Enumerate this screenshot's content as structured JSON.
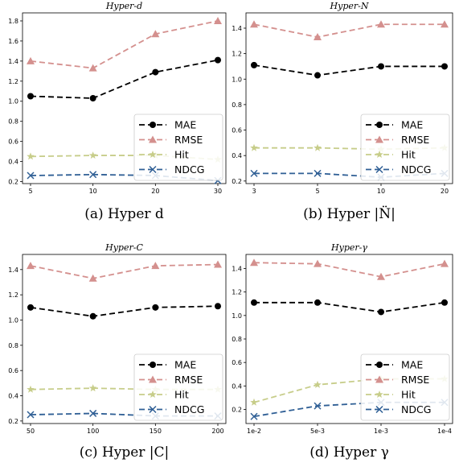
{
  "chart_data": [
    {
      "type": "line",
      "title": "Hyper-d",
      "caption": "(a) Hyper d",
      "categories": [
        "5",
        "10",
        "20",
        "30"
      ],
      "ylim": [
        0.18,
        1.88
      ],
      "yticks": [
        0.2,
        0.4,
        0.6,
        0.8,
        1.0,
        1.2,
        1.4,
        1.6,
        1.8
      ],
      "legend": "bottom-right",
      "grid": false,
      "series": [
        {
          "name": "MAE",
          "values": [
            1.05,
            1.03,
            1.29,
            1.41
          ]
        },
        {
          "name": "RMSE",
          "values": [
            1.4,
            1.33,
            1.67,
            1.8
          ]
        },
        {
          "name": "Hit",
          "values": [
            0.45,
            0.46,
            0.46,
            0.42
          ]
        },
        {
          "name": "NDCG",
          "values": [
            0.26,
            0.27,
            0.26,
            0.21
          ]
        }
      ]
    },
    {
      "type": "line",
      "title": "Hyper-N",
      "caption": "(b) Hyper |N̈|",
      "categories": [
        "3",
        "5",
        "10",
        "20"
      ],
      "ylim": [
        0.18,
        1.52
      ],
      "yticks": [
        0.2,
        0.4,
        0.6,
        0.8,
        1.0,
        1.2,
        1.4
      ],
      "legend": "bottom-right",
      "grid": false,
      "series": [
        {
          "name": "MAE",
          "values": [
            1.11,
            1.03,
            1.1,
            1.1
          ]
        },
        {
          "name": "RMSE",
          "values": [
            1.43,
            1.33,
            1.43,
            1.43
          ]
        },
        {
          "name": "Hit",
          "values": [
            0.46,
            0.46,
            0.45,
            0.46
          ]
        },
        {
          "name": "NDCG",
          "values": [
            0.26,
            0.26,
            0.23,
            0.26
          ]
        }
      ]
    },
    {
      "type": "line",
      "title": "Hyper-C",
      "caption": "(c) Hyper |C|",
      "categories": [
        "50",
        "100",
        "150",
        "200"
      ],
      "ylim": [
        0.18,
        1.52
      ],
      "yticks": [
        0.2,
        0.4,
        0.6,
        0.8,
        1.0,
        1.2,
        1.4
      ],
      "legend": "bottom-right",
      "grid": false,
      "series": [
        {
          "name": "MAE",
          "values": [
            1.1,
            1.03,
            1.1,
            1.11
          ]
        },
        {
          "name": "RMSE",
          "values": [
            1.43,
            1.33,
            1.43,
            1.44
          ]
        },
        {
          "name": "Hit",
          "values": [
            0.45,
            0.46,
            0.45,
            0.45
          ]
        },
        {
          "name": "NDCG",
          "values": [
            0.25,
            0.26,
            0.24,
            0.24
          ]
        }
      ]
    },
    {
      "type": "line",
      "title": "Hyper-γ",
      "caption": "(d) Hyper γ",
      "categories": [
        "1e-2",
        "5e-3",
        "1e-3",
        "1e-4"
      ],
      "ylim": [
        0.08,
        1.52
      ],
      "yticks": [
        0.2,
        0.4,
        0.6,
        0.8,
        1.0,
        1.2,
        1.4
      ],
      "legend": "bottom-right",
      "grid": false,
      "series": [
        {
          "name": "MAE",
          "values": [
            1.11,
            1.11,
            1.03,
            1.11
          ]
        },
        {
          "name": "RMSE",
          "values": [
            1.45,
            1.44,
            1.33,
            1.44
          ]
        },
        {
          "name": "Hit",
          "values": [
            0.26,
            0.41,
            0.46,
            0.46
          ]
        },
        {
          "name": "NDCG",
          "values": [
            0.14,
            0.23,
            0.26,
            0.26
          ]
        }
      ]
    }
  ],
  "colors": {
    "MAE": "#000000",
    "RMSE": "#d4908e",
    "Hit": "#c7cd8a",
    "NDCG": "#2f5f95"
  },
  "markers": {
    "MAE": "circle",
    "RMSE": "triangle",
    "Hit": "star",
    "NDCG": "x"
  }
}
